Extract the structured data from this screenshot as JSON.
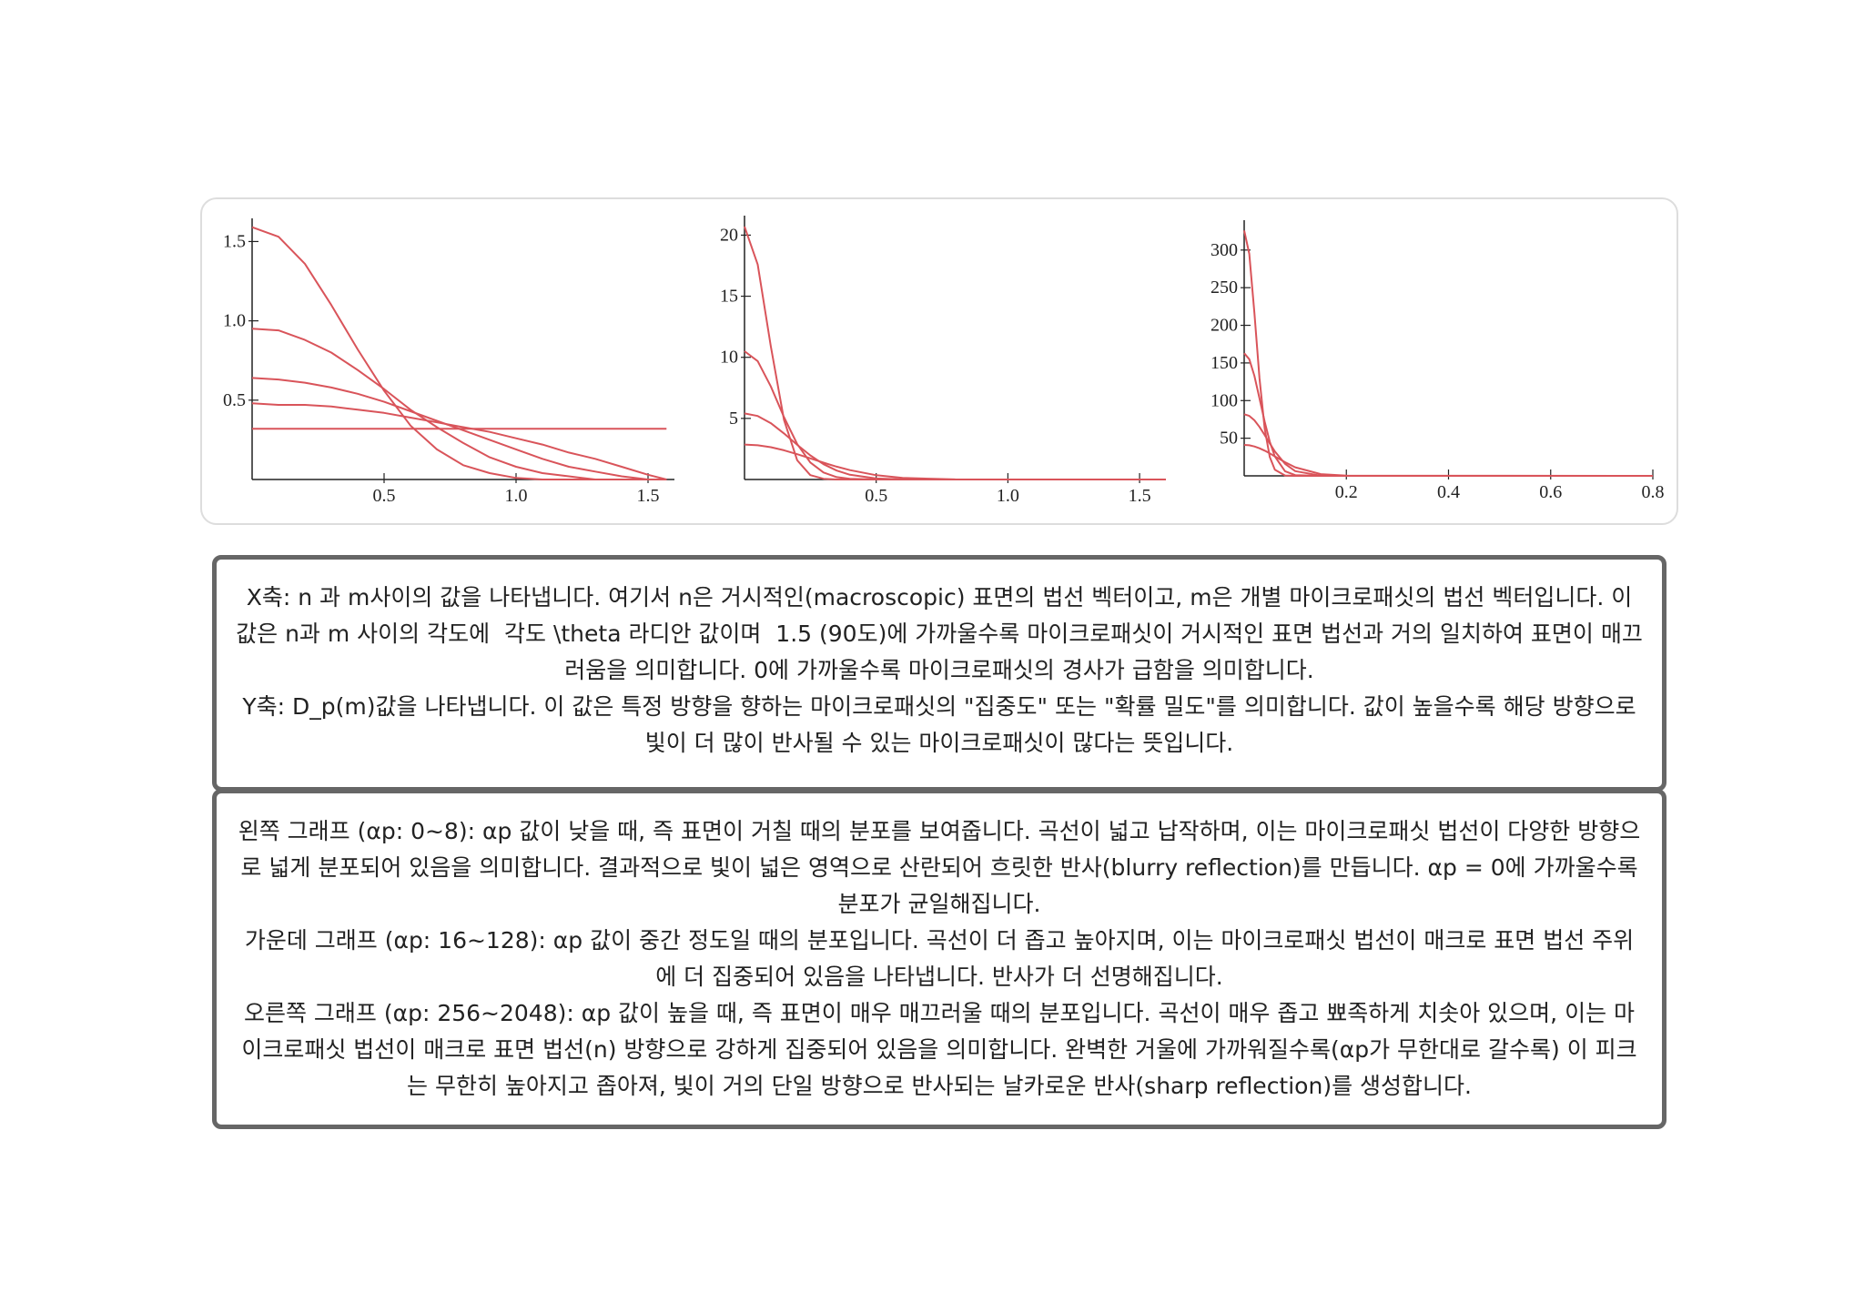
{
  "chart_data": [
    {
      "type": "line",
      "x": [
        0,
        0.1,
        0.2,
        0.3,
        0.4,
        0.5,
        0.6,
        0.7,
        0.8,
        0.9,
        1.0,
        1.1,
        1.2,
        1.3,
        1.4,
        1.5,
        1.57
      ],
      "series": [
        {
          "color": "#d9545a",
          "values": [
            0.32,
            0.32,
            0.32,
            0.32,
            0.32,
            0.32,
            0.32,
            0.32,
            0.32,
            0.32,
            0.32,
            0.32,
            0.32,
            0.32,
            0.32,
            0.32,
            0.32
          ]
        },
        {
          "color": "#d9545a",
          "values": [
            0.48,
            0.47,
            0.47,
            0.46,
            0.44,
            0.42,
            0.39,
            0.36,
            0.33,
            0.3,
            0.26,
            0.22,
            0.17,
            0.13,
            0.08,
            0.03,
            0
          ]
        },
        {
          "color": "#d9545a",
          "values": [
            0.64,
            0.63,
            0.61,
            0.58,
            0.54,
            0.49,
            0.43,
            0.37,
            0.31,
            0.25,
            0.19,
            0.13,
            0.08,
            0.05,
            0.02,
            0,
            0
          ]
        },
        {
          "color": "#d9545a",
          "values": [
            0.95,
            0.94,
            0.88,
            0.8,
            0.69,
            0.57,
            0.44,
            0.33,
            0.23,
            0.14,
            0.08,
            0.04,
            0.02,
            0,
            0,
            0,
            0
          ]
        },
        {
          "color": "#d9545a",
          "values": [
            1.59,
            1.53,
            1.36,
            1.1,
            0.82,
            0.56,
            0.34,
            0.19,
            0.09,
            0.04,
            0.01,
            0,
            0,
            0,
            0,
            0,
            0
          ]
        }
      ],
      "xlim": [
        0,
        1.6
      ],
      "ylim": [
        0,
        1.6
      ],
      "xticks": [
        0.5,
        {
          "value": 1,
          "label": "1.0"
        },
        1.5
      ],
      "yticks": [
        0.5,
        {
          "value": 1,
          "label": "1.0"
        },
        1.5
      ]
    },
    {
      "type": "line",
      "x": [
        0,
        0.05,
        0.1,
        0.15,
        0.2,
        0.25,
        0.3,
        0.35,
        0.4,
        0.5,
        0.6,
        0.8,
        1.6
      ],
      "series": [
        {
          "color": "#d9545a",
          "values": [
            2.86,
            2.8,
            2.64,
            2.39,
            2.07,
            1.73,
            1.38,
            1.05,
            0.77,
            0.35,
            0.13,
            0.01,
            0
          ]
        },
        {
          "color": "#d9545a",
          "values": [
            5.41,
            5.2,
            4.61,
            3.77,
            2.84,
            1.97,
            1.25,
            0.73,
            0.39,
            0.08,
            0.01,
            0,
            0
          ]
        },
        {
          "color": "#d9545a",
          "values": [
            10.5,
            9.69,
            7.62,
            5.1,
            2.9,
            1.39,
            0.57,
            0.19,
            0.05,
            0,
            0,
            0,
            0
          ]
        },
        {
          "color": "#d9545a",
          "values": [
            20.7,
            17.6,
            10.9,
            4.87,
            1.57,
            0.36,
            0.06,
            0,
            0,
            0,
            0,
            0,
            0
          ]
        }
      ],
      "xlim": [
        0,
        1.6
      ],
      "ylim": [
        0,
        21
      ],
      "xticks": [
        0.5,
        {
          "value": 1,
          "label": "1.0"
        },
        1.5
      ],
      "yticks": [
        5,
        10,
        15,
        20
      ]
    },
    {
      "type": "line",
      "x": [
        0,
        0.01,
        0.02,
        0.03,
        0.04,
        0.05,
        0.06,
        0.08,
        0.1,
        0.15,
        0.2,
        0.8
      ],
      "series": [
        {
          "color": "#d9545a",
          "values": [
            41.1,
            40.6,
            39.0,
            36.6,
            33.5,
            29.8,
            25.9,
            18.1,
            11.4,
            2.28,
            0.24,
            0
          ]
        },
        {
          "color": "#d9545a",
          "values": [
            81.8,
            79.7,
            73.9,
            65.0,
            54.3,
            43.1,
            32.5,
            15.9,
            6.28,
            0.25,
            0,
            0
          ]
        },
        {
          "color": "#d9545a",
          "values": [
            163,
            155,
            133,
            103,
            72,
            45.4,
            25.8,
            6.2,
            0.96,
            0,
            0,
            0
          ]
        },
        {
          "color": "#d9545a",
          "values": [
            326,
            295,
            217,
            130,
            63,
            25.2,
            8.2,
            0.5,
            0,
            0,
            0,
            0
          ]
        }
      ],
      "xlim": [
        0,
        0.8
      ],
      "ylim": [
        0,
        330
      ],
      "xticks": [
        0.2,
        0.4,
        0.6,
        0.8
      ],
      "yticks": [
        50,
        100,
        150,
        200,
        250,
        300
      ]
    }
  ],
  "notes": {
    "axes": [
      "X축: n 과 m사이의 값을 나타냅니다. 여기서 n은 거시적인(macroscopic) 표면의 법선 벡터이고, m은 개별 마이크로패싯의 법선 벡터입니다. 이 값은 n과 m 사이의 각도에  각도 \\theta 라디안 값이며  1.5 (90도)에 가까울수록 마이크로패싯이 거시적인 표면 법선과 거의 일치하여 표면이 매끄러움을 의미합니다. 0에 가까울수록 마이크로패싯의 경사가 급함을 의미합니다.",
      "Y축: D_p(m)값을 나타냅니다. 이 값은 특정 방향을 향하는 마이크로패싯의 \"집중도\" 또는 \"확률 밀도\"를 의미합니다. 값이 높을수록 해당 방향으로 빛이 더 많이 반사될 수 있는 마이크로패싯이 많다는 뜻입니다."
    ],
    "graphs": [
      "왼쪽 그래프 (αp: 0~8): αp 값이 낮을 때, 즉 표면이 거칠 때의 분포를 보여줍니다. 곡선이 넓고 납작하며, 이는 마이크로패싯 법선이 다양한 방향으로 넓게 분포되어 있음을 의미합니다. 결과적으로 빛이 넓은 영역으로 산란되어 흐릿한 반사(blurry reflection)를 만듭니다. αp = 0에 가까울수록 분포가 균일해집니다.",
      "가운데 그래프 (αp: 16~128): αp 값이 중간 정도일 때의 분포입니다. 곡선이 더 좁고 높아지며, 이는 마이크로패싯 법선이 매크로 표면 법선 주위에 더 집중되어 있음을 나타냅니다. 반사가 더 선명해집니다.",
      "오른쪽 그래프 (αp: 256~2048): αp 값이 높을 때, 즉 표면이 매우 매끄러울 때의 분포입니다. 곡선이 매우 좁고 뾰족하게 치솟아 있으며, 이는 마이크로패싯 법선이 매크로 표면 법선(n) 방향으로 강하게 집중되어 있음을 의미합니다. 완벽한 거울에 가까워질수록(αp가 무한대로 갈수록) 이 피크는 무한히 높아지고 좁아져, 빛이 거의 단일 방향으로 반사되는 날카로운 반사(sharp reflection)를 생성합니다."
    ]
  }
}
